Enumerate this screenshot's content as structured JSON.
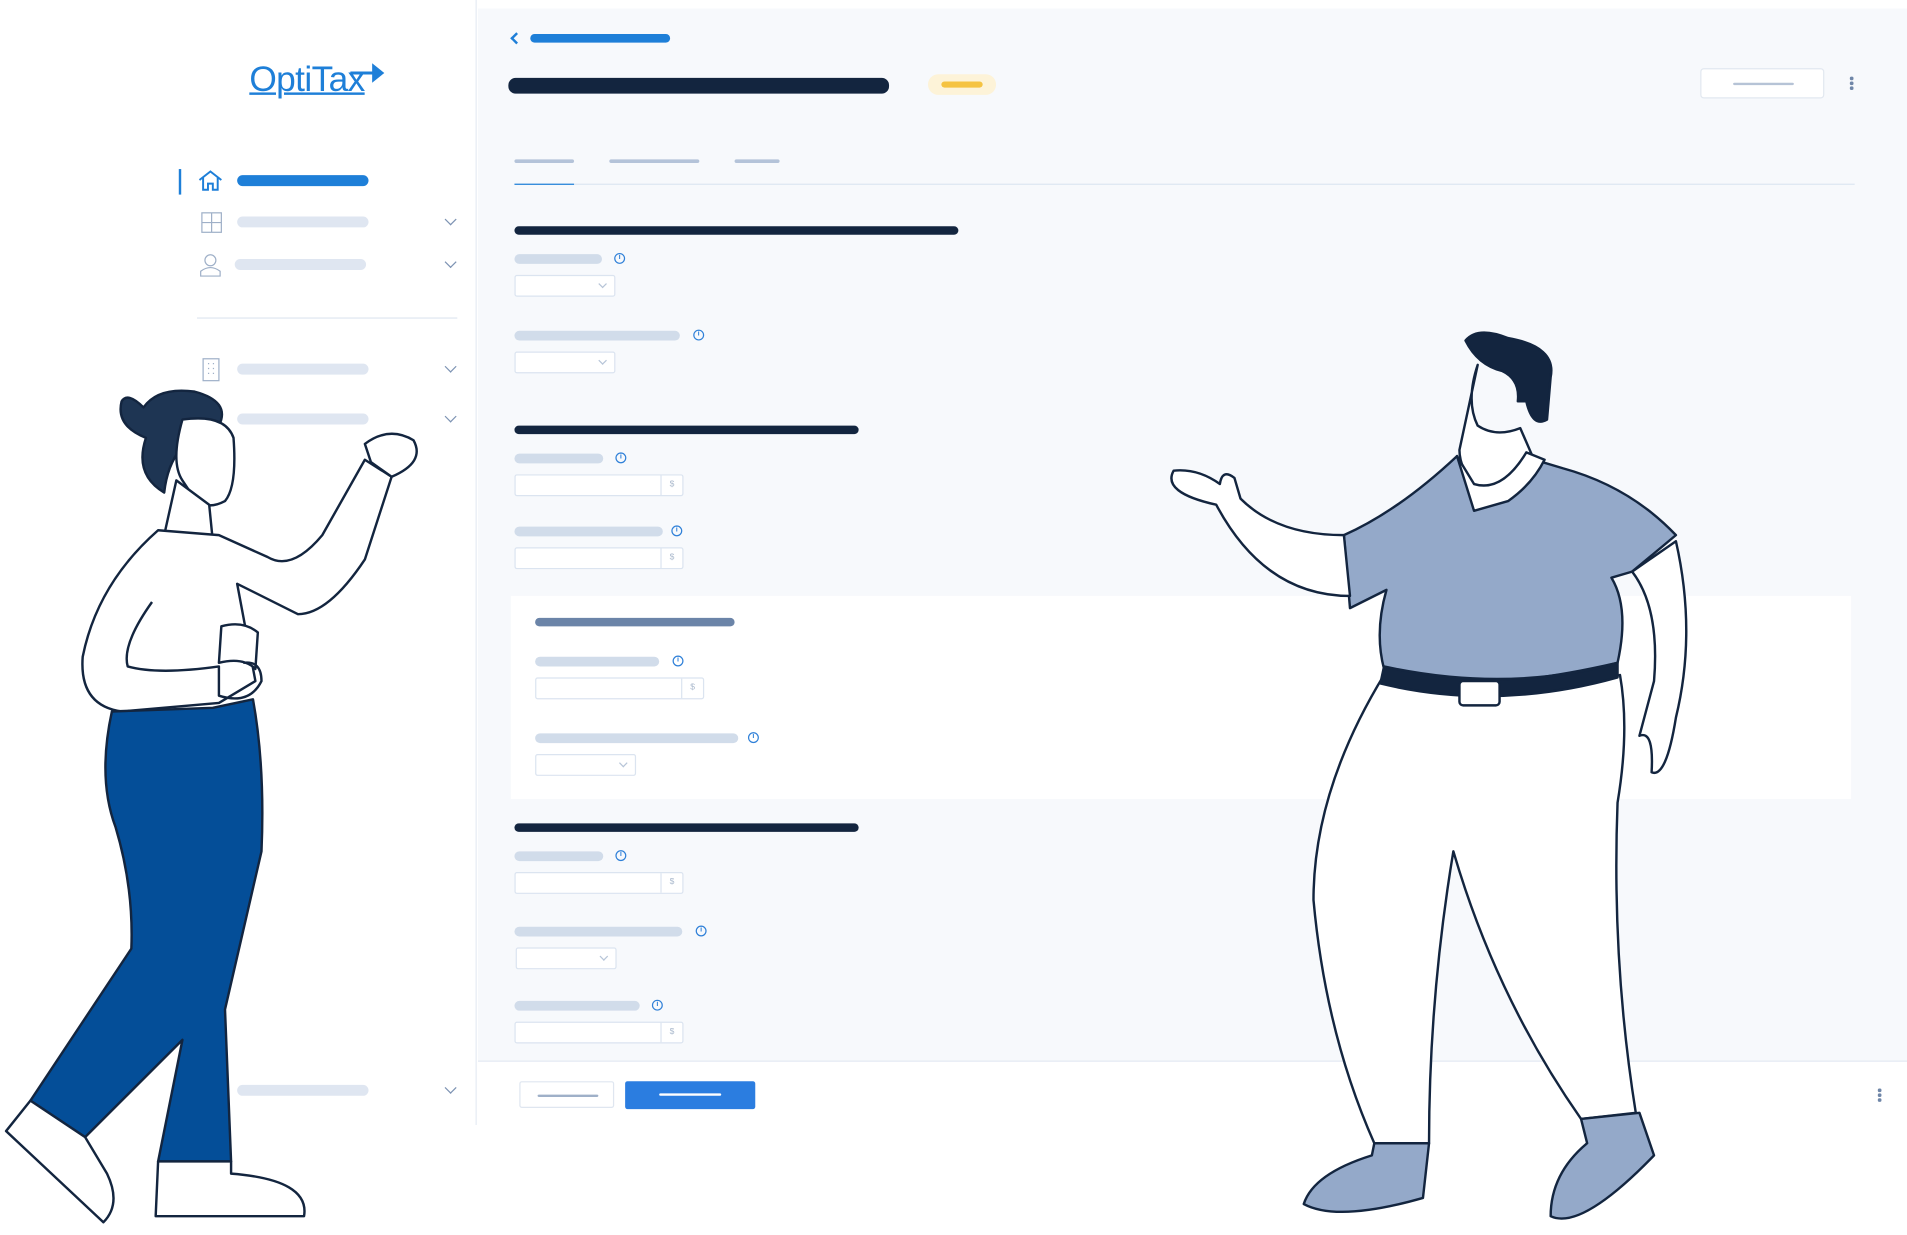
{
  "brand": {
    "logo_text": "OptiTax",
    "accent": "#1e7fd8"
  },
  "colors": {
    "heading": "#13253f",
    "primary": "#2b7de0",
    "badge_bg": "#fdf3d8",
    "badge_fg": "#f5c342",
    "placeholder": "#d1dcea",
    "pants": "#044e98",
    "shirt": "#94a9c9"
  },
  "sidebar": {
    "items": [
      {
        "icon": "home-icon",
        "active": true
      },
      {
        "icon": "calculator-icon",
        "expandable": true
      },
      {
        "icon": "user-icon",
        "expandable": true
      },
      {
        "icon": "building-icon",
        "expandable": true
      },
      {
        "icon": "folder-icon",
        "expandable": true
      }
    ],
    "footer_item": {
      "expandable": true
    }
  },
  "main": {
    "tabs_active_index": 0,
    "currency_symbol": "$",
    "info_icon": "i"
  }
}
